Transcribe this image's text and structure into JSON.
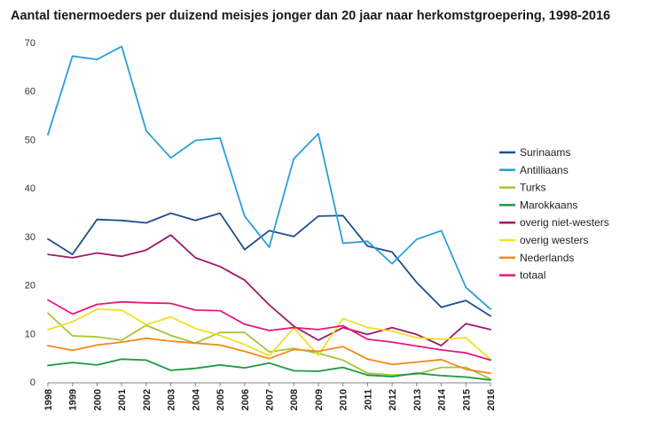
{
  "chart_data": {
    "type": "line",
    "title": "Aantal tienermoeders per duizend meisjes jonger dan 20 jaar naar herkomstgroepering, 1998-2016",
    "xlabel": "",
    "ylabel": "",
    "ylim": [
      0,
      70
    ],
    "yticks": [
      0,
      10,
      20,
      30,
      40,
      50,
      60,
      70
    ],
    "grid": false,
    "legend_position": "right",
    "x": [
      "1998",
      "1999",
      "2000",
      "2001",
      "2002",
      "2003",
      "2004",
      "2005",
      "2006",
      "2007",
      "2008",
      "2009",
      "2010",
      "2011",
      "2012",
      "2013",
      "2014",
      "2015",
      "2016"
    ],
    "series": [
      {
        "name": "Surinaams",
        "color": "#1f4e8c",
        "values": [
          29.5,
          26.3,
          33.5,
          33.3,
          32.8,
          34.8,
          33.3,
          34.8,
          27.3,
          31.2,
          30.0,
          34.2,
          34.3,
          28.0,
          26.8,
          20.5,
          15.4,
          16.8,
          13.6
        ]
      },
      {
        "name": "Antilliaans",
        "color": "#27a0d8",
        "values": [
          51.0,
          67.2,
          66.5,
          69.2,
          51.8,
          46.2,
          49.8,
          50.3,
          34.2,
          27.8,
          46.0,
          51.2,
          28.6,
          29.0,
          24.4,
          29.4,
          31.2,
          19.5,
          15.0
        ]
      },
      {
        "name": "Turks",
        "color": "#a8c43a",
        "values": [
          14.2,
          9.5,
          9.3,
          8.6,
          11.7,
          9.6,
          8.0,
          10.2,
          10.2,
          6.2,
          6.9,
          5.9,
          4.5,
          1.8,
          1.4,
          1.6,
          3.0,
          3.0,
          0.6
        ]
      },
      {
        "name": "Marokkaans",
        "color": "#1a9a40",
        "values": [
          3.4,
          4.0,
          3.5,
          4.7,
          4.5,
          2.4,
          2.8,
          3.5,
          2.9,
          3.9,
          2.3,
          2.2,
          3.0,
          1.4,
          1.1,
          1.8,
          1.3,
          1.0,
          0.4
        ]
      },
      {
        "name": "overig niet-westers",
        "color": "#9c1a6e",
        "values": [
          26.3,
          25.6,
          26.6,
          25.9,
          27.2,
          30.3,
          25.6,
          23.8,
          21.0,
          15.9,
          11.5,
          8.6,
          11.2,
          9.8,
          11.2,
          9.8,
          7.5,
          12.0,
          10.8
        ]
      },
      {
        "name": "overig westers",
        "color": "#f1e020",
        "values": [
          10.8,
          12.4,
          15.0,
          14.8,
          11.8,
          13.4,
          11.0,
          9.6,
          7.7,
          5.4,
          11.1,
          5.5,
          13.1,
          11.2,
          10.5,
          9.1,
          8.8,
          9.1,
          4.6
        ]
      },
      {
        "name": "Nederlands",
        "color": "#ef8a1c",
        "values": [
          7.5,
          6.5,
          7.6,
          8.2,
          9.0,
          8.4,
          8.0,
          7.6,
          6.3,
          4.8,
          6.7,
          6.3,
          7.3,
          4.7,
          3.6,
          4.1,
          4.6,
          2.6,
          1.8
        ]
      },
      {
        "name": "totaal",
        "color": "#e6197a",
        "values": [
          16.9,
          14.0,
          16.0,
          16.5,
          16.3,
          16.2,
          14.8,
          14.7,
          11.9,
          10.6,
          11.2,
          10.8,
          11.6,
          8.8,
          8.2,
          7.4,
          6.6,
          6.0,
          4.5
        ]
      }
    ]
  }
}
